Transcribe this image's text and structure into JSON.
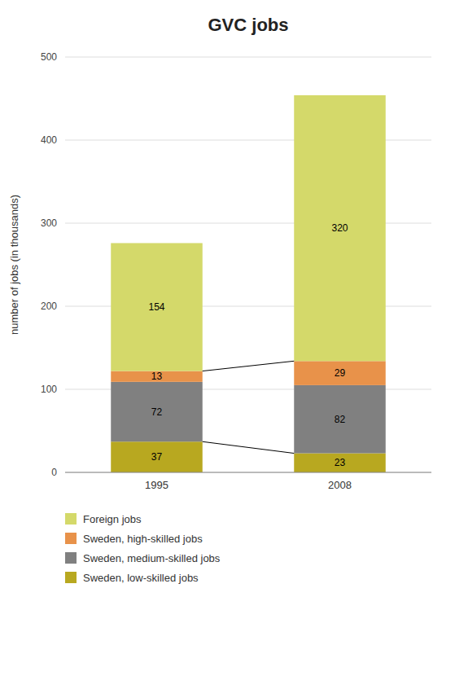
{
  "chart_data": {
    "type": "bar",
    "stacked": true,
    "title": "GVC jobs",
    "ylabel": "number of jobs (in thousands)",
    "categories": [
      "1995",
      "2008"
    ],
    "series": [
      {
        "name": "Sweden, low-skilled jobs",
        "color": "#b8a820",
        "values": [
          37,
          23
        ]
      },
      {
        "name": "Sweden, medium-skilled jobs",
        "color": "#808080",
        "values": [
          72,
          82
        ]
      },
      {
        "name": "Sweden, high-skilled jobs",
        "color": "#e8924a",
        "values": [
          13,
          29
        ]
      },
      {
        "name": "Foreign jobs",
        "color": "#d4d96a",
        "values": [
          154,
          320
        ]
      }
    ],
    "ylim": [
      0,
      500
    ],
    "yticks": [
      0,
      100,
      200,
      300,
      400,
      500
    ],
    "grid": true,
    "data_labels": true,
    "legend": "bottom"
  }
}
